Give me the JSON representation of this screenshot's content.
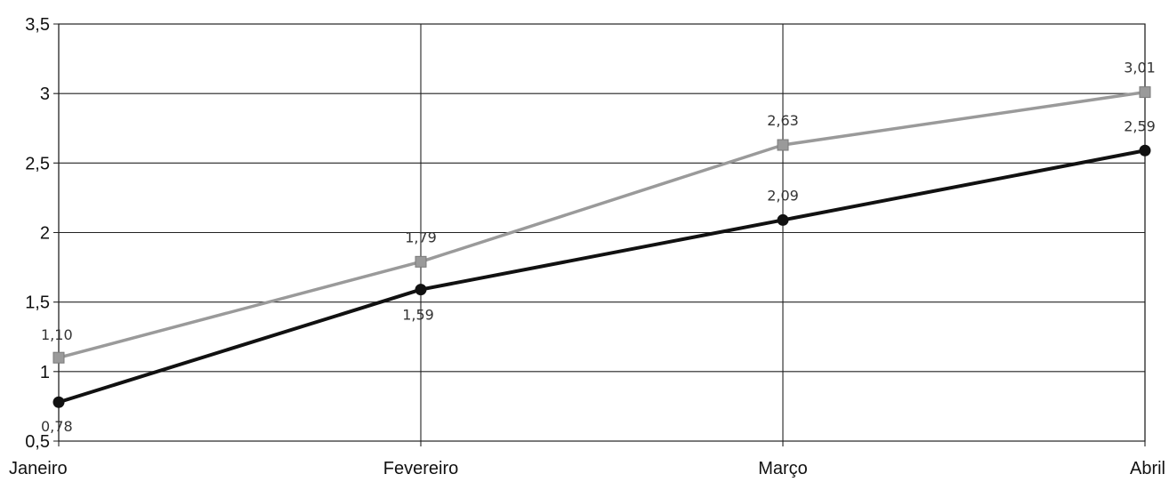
{
  "chart_data": {
    "type": "line",
    "categories": [
      "Janeiro",
      "Fevereiro",
      "Março",
      "Abril"
    ],
    "series": [
      {
        "color": "#9a9a9a",
        "marker": "square",
        "values": [
          1.1,
          1.79,
          2.63,
          3.01
        ],
        "labels": [
          "1,10",
          "1,79",
          "2,63",
          "3,01"
        ]
      },
      {
        "color": "#111111",
        "marker": "circle",
        "values": [
          0.78,
          1.59,
          2.09,
          2.59
        ],
        "labels": [
          "0,78",
          "1,59",
          "2,09",
          "2,59"
        ]
      }
    ],
    "ylim": [
      0.5,
      3.5
    ],
    "yticks": [
      0.5,
      1,
      1.5,
      2,
      2.5,
      3,
      3.5
    ],
    "ytick_labels": [
      "0,5",
      "1",
      "1,5",
      "2",
      "2,5",
      "3",
      "3,5"
    ],
    "grid": true,
    "legend": "none",
    "title": "",
    "xlabel": "",
    "ylabel": ""
  }
}
